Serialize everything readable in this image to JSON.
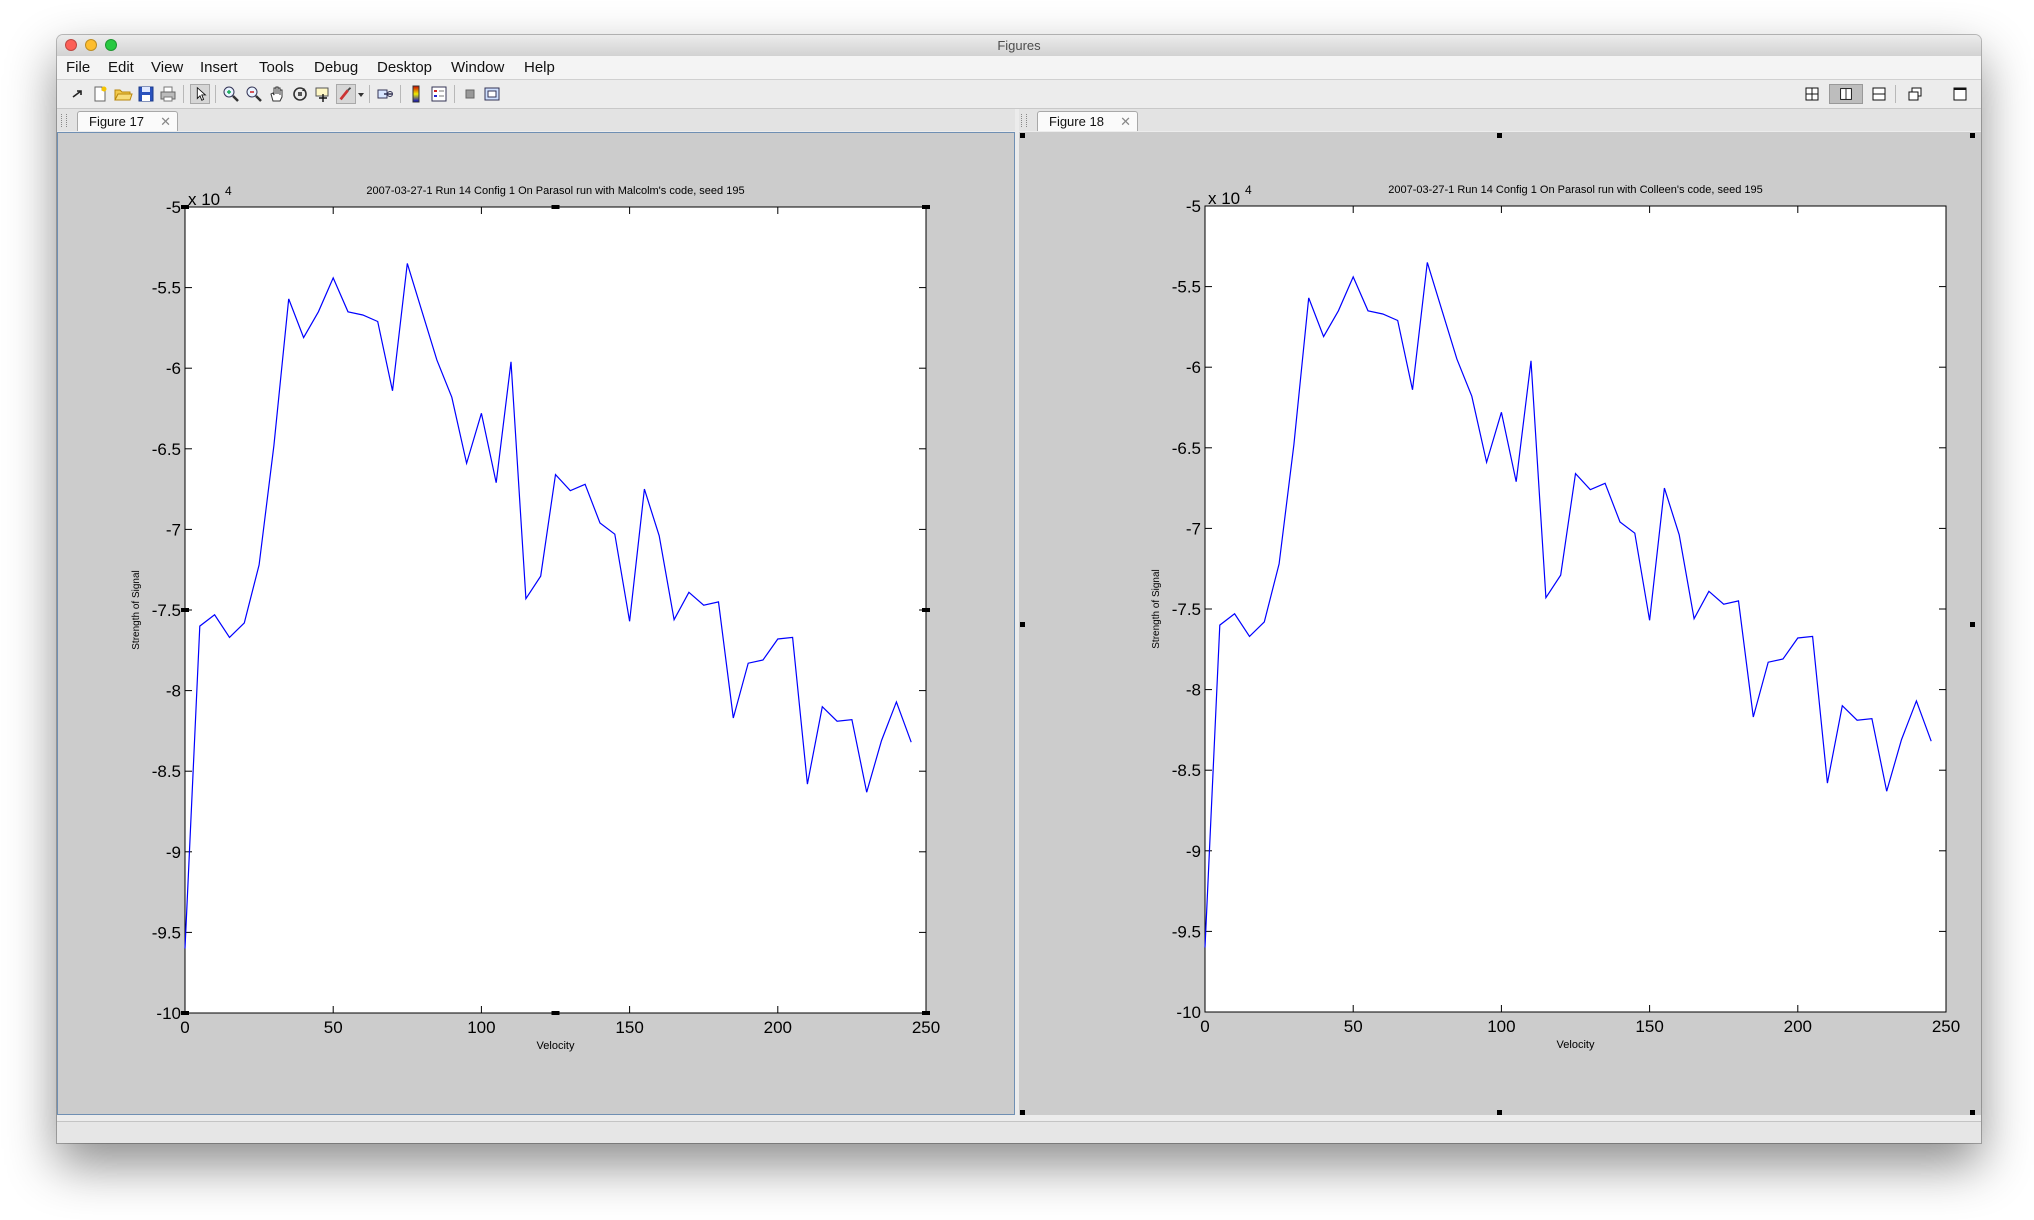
{
  "window": {
    "title": "Figures"
  },
  "menu": [
    "File",
    "Edit",
    "View",
    "Insert",
    "Tools",
    "Debug",
    "Desktop",
    "Window",
    "Help"
  ],
  "toolbar": {
    "left_icons": [
      "dock-arrow-icon",
      "new-figure-icon",
      "open-file-icon",
      "save-icon",
      "print-icon",
      "edit-plot-icon",
      "zoom-in-icon",
      "zoom-out-icon",
      "pan-hand-icon",
      "rotate-3d-icon",
      "data-cursor-icon",
      "brush-icon",
      "brush-dropdown-icon",
      "link-plot-icon",
      "insert-colorbar-icon",
      "insert-legend-icon",
      "hide-plot-tools-icon",
      "show-plot-tools-icon"
    ],
    "layout_icons": [
      "tile-grid-icon",
      "split-left-right-icon",
      "split-top-bottom-icon",
      "float-icon",
      "maximize-icon"
    ],
    "active_layout": "split-left-right-icon"
  },
  "figures": [
    {
      "tab_label": "Figure 17",
      "close_glyph": "✕",
      "selected": true,
      "chart_data": {
        "type": "line",
        "title": "2007-03-27-1 Run 14 Config 1 On Parasol run with Malcolm's code, seed 195",
        "xlabel": "Velocity",
        "ylabel": "Strength of Signal",
        "exponent_label": "x 10",
        "exponent_power": "4",
        "xlim": [
          0,
          250
        ],
        "ylim": [
          -10,
          -5
        ],
        "xticks": [
          "0",
          "50",
          "100",
          "150",
          "200",
          "250"
        ],
        "yticks": [
          "-5",
          "-5.5",
          "-6",
          "-6.5",
          "-7",
          "-7.5",
          "-8",
          "-8.5",
          "-9",
          "-9.5",
          "-10"
        ],
        "color": "#0000ff",
        "series": [
          {
            "x": [
              0,
              5,
              10,
              15,
              20,
              25,
              30,
              35,
              40,
              45,
              50,
              55,
              60,
              65,
              70,
              75,
              80,
              85,
              90,
              95,
              100,
              105,
              110,
              115,
              120,
              125,
              130,
              135,
              140,
              145,
              150,
              155,
              160,
              165,
              170,
              175,
              180,
              185,
              190,
              195,
              200,
              205,
              210,
              215,
              220,
              225,
              230,
              235,
              240,
              245
            ],
            "values": [
              -9.6,
              -7.6,
              -7.53,
              -7.67,
              -7.58,
              -7.22,
              -6.48,
              -5.57,
              -5.81,
              -5.65,
              -5.44,
              -5.65,
              -5.67,
              -5.71,
              -6.14,
              -5.35,
              -5.65,
              -5.95,
              -6.18,
              -6.59,
              -6.28,
              -6.71,
              -5.96,
              -7.43,
              -7.29,
              -6.66,
              -6.76,
              -6.72,
              -6.96,
              -7.03,
              -7.57,
              -6.75,
              -7.04,
              -7.56,
              -7.39,
              -7.47,
              -7.45,
              -8.17,
              -7.83,
              -7.81,
              -7.68,
              -7.67,
              -8.58,
              -8.1,
              -8.19,
              -8.18,
              -8.63,
              -8.31,
              -8.07,
              -8.32
            ]
          }
        ]
      }
    },
    {
      "tab_label": "Figure 18",
      "close_glyph": "✕",
      "selected": false,
      "chart_data": {
        "type": "line",
        "title": "2007-03-27-1 Run 14 Config 1 On Parasol run with Colleen's code, seed 195",
        "xlabel": "Velocity",
        "ylabel": "Strength of Signal",
        "exponent_label": "x 10",
        "exponent_power": "4",
        "xlim": [
          0,
          250
        ],
        "ylim": [
          -10,
          -5
        ],
        "xticks": [
          "0",
          "50",
          "100",
          "150",
          "200",
          "250"
        ],
        "yticks": [
          "-5",
          "-5.5",
          "-6",
          "-6.5",
          "-7",
          "-7.5",
          "-8",
          "-8.5",
          "-9",
          "-9.5",
          "-10"
        ],
        "color": "#0000ff",
        "series": [
          {
            "x": [
              0,
              5,
              10,
              15,
              20,
              25,
              30,
              35,
              40,
              45,
              50,
              55,
              60,
              65,
              70,
              75,
              80,
              85,
              90,
              95,
              100,
              105,
              110,
              115,
              120,
              125,
              130,
              135,
              140,
              145,
              150,
              155,
              160,
              165,
              170,
              175,
              180,
              185,
              190,
              195,
              200,
              205,
              210,
              215,
              220,
              225,
              230,
              235,
              240,
              245
            ],
            "values": [
              -9.6,
              -7.6,
              -7.53,
              -7.67,
              -7.58,
              -7.22,
              -6.48,
              -5.57,
              -5.81,
              -5.65,
              -5.44,
              -5.65,
              -5.67,
              -5.71,
              -6.14,
              -5.35,
              -5.65,
              -5.95,
              -6.18,
              -6.59,
              -6.28,
              -6.71,
              -5.96,
              -7.43,
              -7.29,
              -6.66,
              -6.76,
              -6.72,
              -6.96,
              -7.03,
              -7.57,
              -6.75,
              -7.04,
              -7.56,
              -7.39,
              -7.47,
              -7.45,
              -8.17,
              -7.83,
              -7.81,
              -7.68,
              -7.67,
              -8.58,
              -8.1,
              -8.19,
              -8.18,
              -8.63,
              -8.31,
              -8.07,
              -8.32
            ]
          }
        ]
      }
    }
  ]
}
